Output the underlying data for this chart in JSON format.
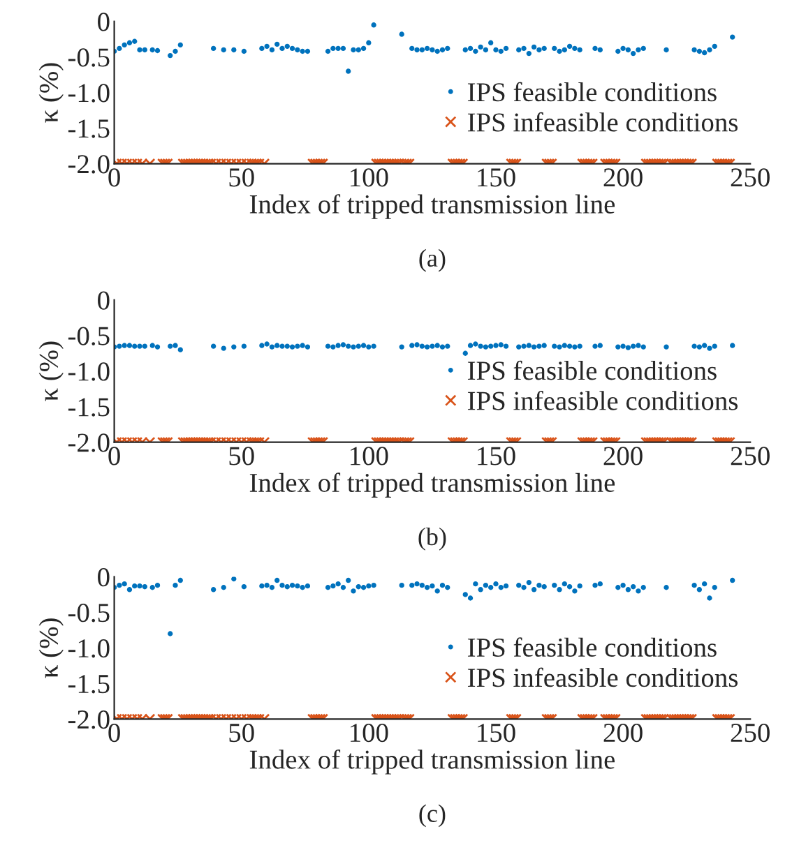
{
  "chart_data": [
    {
      "type": "scatter",
      "xlabel": "Index of tripped transmission line",
      "ylabel": "κ (%)",
      "annotations": [
        "(a)"
      ],
      "xlim": [
        0,
        250
      ],
      "xticks": [
        0,
        50,
        100,
        150,
        200,
        250
      ],
      "ylim": [
        -2,
        0
      ],
      "yticks": [
        0,
        {
          "value": -0.5,
          "label": "-0.5"
        },
        {
          "value": -1,
          "label": "-1.0"
        },
        {
          "value": -1.5,
          "label": "-1.5"
        },
        {
          "value": -2,
          "label": "-2.0"
        }
      ],
      "legend": "right",
      "grid": false,
      "series": [
        {
          "name": "IPS feasible conditions",
          "color": "#0072bd",
          "marker": "circle",
          "x": [
            0,
            2,
            4,
            6,
            8,
            10,
            12,
            15,
            17,
            22,
            24,
            26,
            39,
            43,
            47,
            51,
            58,
            60,
            62,
            64,
            66,
            68,
            70,
            72,
            74,
            76,
            84,
            86,
            88,
            90,
            92,
            94,
            96,
            98,
            100,
            102,
            113,
            117,
            119,
            121,
            123,
            125,
            127,
            129,
            131,
            138,
            140,
            142,
            144,
            146,
            148,
            150,
            152,
            154,
            159,
            161,
            163,
            165,
            167,
            169,
            173,
            175,
            177,
            179,
            181,
            183,
            189,
            191,
            198,
            200,
            202,
            204,
            206,
            208,
            217,
            228,
            230,
            232,
            234,
            236,
            243
          ],
          "values": [
            -0.42,
            -0.38,
            -0.33,
            -0.3,
            -0.28,
            -0.4,
            -0.4,
            -0.4,
            -0.41,
            -0.48,
            -0.42,
            -0.33,
            -0.38,
            -0.4,
            -0.4,
            -0.42,
            -0.38,
            -0.35,
            -0.4,
            -0.32,
            -0.38,
            -0.35,
            -0.38,
            -0.4,
            -0.42,
            -0.42,
            -0.42,
            -0.38,
            -0.38,
            -0.38,
            -0.7,
            -0.4,
            -0.4,
            -0.38,
            -0.3,
            -0.05,
            -0.18,
            -0.38,
            -0.4,
            -0.4,
            -0.38,
            -0.4,
            -0.42,
            -0.4,
            -0.38,
            -0.4,
            -0.38,
            -0.42,
            -0.36,
            -0.4,
            -0.3,
            -0.4,
            -0.42,
            -0.38,
            -0.4,
            -0.38,
            -0.45,
            -0.36,
            -0.4,
            -0.38,
            -0.38,
            -0.42,
            -0.4,
            -0.35,
            -0.38,
            -0.4,
            -0.38,
            -0.4,
            -0.42,
            -0.38,
            -0.4,
            -0.45,
            -0.4,
            -0.38,
            -0.4,
            -0.4,
            -0.42,
            -0.44,
            -0.4,
            -0.35,
            -0.22
          ]
        },
        {
          "name": "IPS infeasible conditions",
          "color": "#d95319",
          "marker": "cross",
          "x": [
            1,
            3,
            5,
            7,
            9,
            11,
            14,
            19,
            20,
            21,
            27,
            28,
            29,
            30,
            31,
            32,
            33,
            34,
            35,
            36,
            37,
            38,
            40,
            42,
            44,
            46,
            48,
            50,
            52,
            54,
            55,
            56,
            57,
            59,
            78,
            79,
            80,
            81,
            82,
            103,
            104,
            105,
            106,
            107,
            108,
            109,
            110,
            111,
            112,
            114,
            115,
            116,
            133,
            134,
            135,
            136,
            137,
            156,
            157,
            158,
            170,
            171,
            172,
            184,
            185,
            186,
            187,
            188,
            193,
            194,
            195,
            196,
            197,
            209,
            210,
            211,
            212,
            213,
            214,
            215,
            216,
            219,
            220,
            221,
            222,
            223,
            224,
            225,
            226,
            227,
            237,
            238,
            239,
            240,
            241,
            242
          ],
          "values": [
            -2,
            -2,
            -2,
            -2,
            -2,
            -2,
            -2,
            -2,
            -2,
            -2,
            -2,
            -2,
            -2,
            -2,
            -2,
            -2,
            -2,
            -2,
            -2,
            -2,
            -2,
            -2,
            -2,
            -2,
            -2,
            -2,
            -2,
            -2,
            -2,
            -2,
            -2,
            -2,
            -2,
            -2,
            -2,
            -2,
            -2,
            -2,
            -2,
            -2,
            -2,
            -2,
            -2,
            -2,
            -2,
            -2,
            -2,
            -2,
            -2,
            -2,
            -2,
            -2,
            -2,
            -2,
            -2,
            -2,
            -2,
            -2,
            -2,
            -2,
            -2,
            -2,
            -2,
            -2,
            -2,
            -2,
            -2,
            -2,
            -2,
            -2,
            -2,
            -2,
            -2,
            -2,
            -2,
            -2,
            -2,
            -2,
            -2,
            -2,
            -2,
            -2,
            -2,
            -2,
            -2,
            -2,
            -2,
            -2,
            -2,
            -2,
            -2,
            -2,
            -2,
            -2,
            -2,
            -2
          ]
        }
      ]
    },
    {
      "type": "scatter",
      "xlabel": "Index of tripped transmission line",
      "ylabel": "κ (%)",
      "annotations": [
        "(b)"
      ],
      "xlim": [
        0,
        250
      ],
      "xticks": [
        0,
        50,
        100,
        150,
        200,
        250
      ],
      "ylim": [
        -2,
        0
      ],
      "yticks": [
        0,
        {
          "value": -0.5,
          "label": "-0.5"
        },
        {
          "value": -1,
          "label": "-1.0"
        },
        {
          "value": -1.5,
          "label": "-1.5"
        },
        {
          "value": -2,
          "label": "-2.0"
        }
      ],
      "legend": "right",
      "grid": false,
      "series": [
        {
          "name": "IPS feasible conditions",
          "color": "#0072bd",
          "marker": "circle",
          "x": [
            0,
            2,
            4,
            6,
            8,
            10,
            12,
            15,
            17,
            22,
            24,
            26,
            39,
            43,
            47,
            51,
            58,
            60,
            62,
            64,
            66,
            68,
            70,
            72,
            74,
            76,
            84,
            86,
            88,
            90,
            92,
            94,
            96,
            98,
            100,
            102,
            113,
            117,
            119,
            121,
            123,
            125,
            127,
            129,
            131,
            138,
            140,
            142,
            144,
            146,
            148,
            150,
            152,
            154,
            159,
            161,
            163,
            165,
            167,
            169,
            173,
            175,
            177,
            179,
            181,
            183,
            189,
            191,
            198,
            200,
            202,
            204,
            206,
            208,
            217,
            228,
            230,
            232,
            234,
            236,
            243
          ],
          "values": [
            -0.66,
            -0.65,
            -0.64,
            -0.64,
            -0.65,
            -0.65,
            -0.65,
            -0.64,
            -0.66,
            -0.65,
            -0.64,
            -0.7,
            -0.65,
            -0.68,
            -0.66,
            -0.65,
            -0.64,
            -0.62,
            -0.66,
            -0.64,
            -0.65,
            -0.65,
            -0.66,
            -0.65,
            -0.64,
            -0.66,
            -0.65,
            -0.66,
            -0.64,
            -0.63,
            -0.65,
            -0.66,
            -0.65,
            -0.64,
            -0.66,
            -0.65,
            -0.66,
            -0.64,
            -0.63,
            -0.65,
            -0.66,
            -0.65,
            -0.64,
            -0.66,
            -0.65,
            -0.75,
            -0.64,
            -0.62,
            -0.65,
            -0.66,
            -0.65,
            -0.64,
            -0.63,
            -0.65,
            -0.66,
            -0.65,
            -0.64,
            -0.66,
            -0.65,
            -0.64,
            -0.65,
            -0.66,
            -0.64,
            -0.65,
            -0.66,
            -0.65,
            -0.65,
            -0.64,
            -0.66,
            -0.65,
            -0.67,
            -0.65,
            -0.64,
            -0.66,
            -0.66,
            -0.65,
            -0.66,
            -0.64,
            -0.68,
            -0.65,
            -0.64
          ]
        },
        {
          "name": "IPS infeasible conditions",
          "color": "#d95319",
          "marker": "cross",
          "x": [
            1,
            3,
            5,
            7,
            9,
            11,
            14,
            19,
            20,
            21,
            27,
            28,
            29,
            30,
            31,
            32,
            33,
            34,
            35,
            36,
            37,
            38,
            40,
            42,
            44,
            46,
            48,
            50,
            52,
            54,
            55,
            56,
            57,
            59,
            78,
            79,
            80,
            81,
            82,
            103,
            104,
            105,
            106,
            107,
            108,
            109,
            110,
            111,
            112,
            114,
            115,
            116,
            133,
            134,
            135,
            136,
            137,
            156,
            157,
            158,
            170,
            171,
            172,
            184,
            185,
            186,
            187,
            188,
            193,
            194,
            195,
            196,
            197,
            209,
            210,
            211,
            212,
            213,
            214,
            215,
            216,
            219,
            220,
            221,
            222,
            223,
            224,
            225,
            226,
            227,
            237,
            238,
            239,
            240,
            241,
            242
          ],
          "values": [
            -2,
            -2,
            -2,
            -2,
            -2,
            -2,
            -2,
            -2,
            -2,
            -2,
            -2,
            -2,
            -2,
            -2,
            -2,
            -2,
            -2,
            -2,
            -2,
            -2,
            -2,
            -2,
            -2,
            -2,
            -2,
            -2,
            -2,
            -2,
            -2,
            -2,
            -2,
            -2,
            -2,
            -2,
            -2,
            -2,
            -2,
            -2,
            -2,
            -2,
            -2,
            -2,
            -2,
            -2,
            -2,
            -2,
            -2,
            -2,
            -2,
            -2,
            -2,
            -2,
            -2,
            -2,
            -2,
            -2,
            -2,
            -2,
            -2,
            -2,
            -2,
            -2,
            -2,
            -2,
            -2,
            -2,
            -2,
            -2,
            -2,
            -2,
            -2,
            -2,
            -2,
            -2,
            -2,
            -2,
            -2,
            -2,
            -2,
            -2,
            -2,
            -2,
            -2,
            -2,
            -2,
            -2,
            -2,
            -2,
            -2,
            -2,
            -2,
            -2,
            -2,
            -2,
            -2,
            -2
          ]
        }
      ]
    },
    {
      "type": "scatter",
      "xlabel": "Index of tripped transmission line",
      "ylabel": "κ (%)",
      "annotations": [
        "(c)"
      ],
      "xlim": [
        0,
        250
      ],
      "xticks": [
        0,
        50,
        100,
        150,
        200,
        250
      ],
      "ylim": [
        -2,
        0
      ],
      "yticks": [
        0,
        {
          "value": -0.5,
          "label": "-0.5"
        },
        {
          "value": -1,
          "label": "-1.0"
        },
        {
          "value": -1.5,
          "label": "-1.5"
        },
        {
          "value": -2,
          "label": "-2.0"
        }
      ],
      "legend": "right",
      "grid": false,
      "series": [
        {
          "name": "IPS feasible conditions",
          "color": "#0072bd",
          "marker": "circle",
          "x": [
            0,
            2,
            4,
            6,
            8,
            10,
            12,
            15,
            17,
            22,
            24,
            26,
            39,
            43,
            47,
            51,
            58,
            60,
            62,
            64,
            66,
            68,
            70,
            72,
            74,
            76,
            84,
            86,
            88,
            90,
            92,
            94,
            96,
            98,
            100,
            102,
            113,
            117,
            119,
            121,
            123,
            125,
            127,
            129,
            131,
            138,
            140,
            142,
            144,
            146,
            148,
            150,
            152,
            154,
            159,
            161,
            163,
            165,
            167,
            169,
            173,
            175,
            177,
            179,
            181,
            183,
            189,
            191,
            198,
            200,
            202,
            204,
            206,
            208,
            217,
            228,
            230,
            232,
            234,
            236,
            243
          ],
          "values": [
            -0.15,
            -0.12,
            -0.1,
            -0.18,
            -0.13,
            -0.13,
            -0.14,
            -0.15,
            -0.12,
            -0.8,
            -0.12,
            -0.05,
            -0.18,
            -0.15,
            -0.03,
            -0.14,
            -0.13,
            -0.12,
            -0.15,
            -0.05,
            -0.12,
            -0.14,
            -0.12,
            -0.13,
            -0.15,
            -0.13,
            -0.15,
            -0.13,
            -0.1,
            -0.15,
            -0.05,
            -0.2,
            -0.14,
            -0.15,
            -0.13,
            -0.12,
            -0.12,
            -0.12,
            -0.1,
            -0.12,
            -0.15,
            -0.13,
            -0.2,
            -0.12,
            -0.15,
            -0.25,
            -0.3,
            -0.1,
            -0.18,
            -0.12,
            -0.15,
            -0.1,
            -0.15,
            -0.13,
            -0.12,
            -0.15,
            -0.08,
            -0.18,
            -0.12,
            -0.14,
            -0.12,
            -0.18,
            -0.1,
            -0.14,
            -0.2,
            -0.13,
            -0.12,
            -0.1,
            -0.15,
            -0.12,
            -0.18,
            -0.14,
            -0.2,
            -0.15,
            -0.15,
            -0.12,
            -0.18,
            -0.1,
            -0.3,
            -0.15,
            -0.05
          ]
        },
        {
          "name": "IPS infeasible conditions",
          "color": "#d95319",
          "marker": "cross",
          "x": [
            1,
            3,
            5,
            7,
            9,
            11,
            14,
            19,
            20,
            21,
            27,
            28,
            29,
            30,
            31,
            32,
            33,
            34,
            35,
            36,
            37,
            38,
            40,
            42,
            44,
            46,
            48,
            50,
            52,
            54,
            55,
            56,
            57,
            59,
            78,
            79,
            80,
            81,
            82,
            103,
            104,
            105,
            106,
            107,
            108,
            109,
            110,
            111,
            112,
            114,
            115,
            116,
            133,
            134,
            135,
            136,
            137,
            156,
            157,
            158,
            170,
            171,
            172,
            184,
            185,
            186,
            187,
            188,
            193,
            194,
            195,
            196,
            197,
            209,
            210,
            211,
            212,
            213,
            214,
            215,
            216,
            219,
            220,
            221,
            222,
            223,
            224,
            225,
            226,
            227,
            237,
            238,
            239,
            240,
            241,
            242
          ],
          "values": [
            -2,
            -2,
            -2,
            -2,
            -2,
            -2,
            -2,
            -2,
            -2,
            -2,
            -2,
            -2,
            -2,
            -2,
            -2,
            -2,
            -2,
            -2,
            -2,
            -2,
            -2,
            -2,
            -2,
            -2,
            -2,
            -2,
            -2,
            -2,
            -2,
            -2,
            -2,
            -2,
            -2,
            -2,
            -2,
            -2,
            -2,
            -2,
            -2,
            -2,
            -2,
            -2,
            -2,
            -2,
            -2,
            -2,
            -2,
            -2,
            -2,
            -2,
            -2,
            -2,
            -2,
            -2,
            -2,
            -2,
            -2,
            -2,
            -2,
            -2,
            -2,
            -2,
            -2,
            -2,
            -2,
            -2,
            -2,
            -2,
            -2,
            -2,
            -2,
            -2,
            -2,
            -2,
            -2,
            -2,
            -2,
            -2,
            -2,
            -2,
            -2,
            -2,
            -2,
            -2,
            -2,
            -2,
            -2,
            -2,
            -2,
            -2,
            -2,
            -2,
            -2,
            -2,
            -2,
            -2
          ]
        }
      ]
    }
  ]
}
